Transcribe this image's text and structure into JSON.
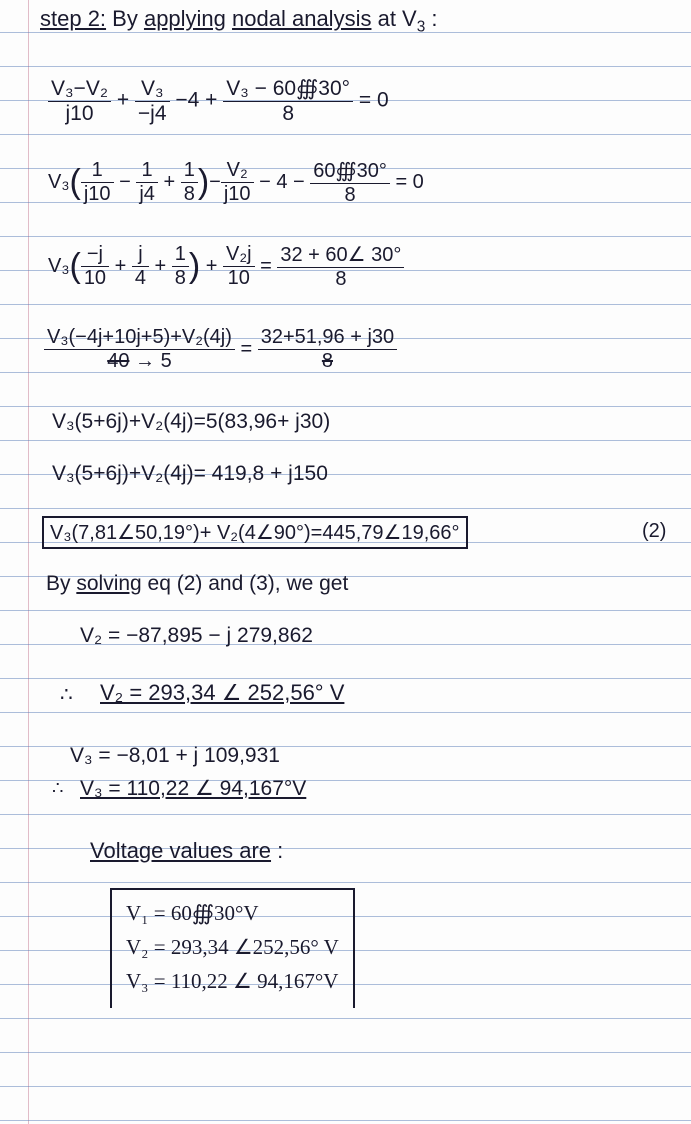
{
  "ink_color": "#1a1a2e",
  "rule_color": "#5b7db8",
  "margin_color": "#d4a0b0",
  "line_spacing": 34,
  "lines": {
    "step_title": "step 2: By applying nodal analysis at V₃ :",
    "eq1_a": "V₃−V₂",
    "eq1_a_den": "j10",
    "eq1_b": "V₃",
    "eq1_b_den": "−j4",
    "eq1_mid": "−4 +",
    "eq1_c": "V₃ − 60∰30°",
    "eq1_c_den": "8",
    "eq1_end": "= 0",
    "eq2_pre": "V₃",
    "eq2_paren_num": "1",
    "eq2_p1_den": "j10",
    "eq2_p2_num": "1",
    "eq2_p2_den": "j4",
    "eq2_p3_num": "1",
    "eq2_p3_den": "8",
    "eq2_mid_num": "V₂",
    "eq2_mid_den": "j10",
    "eq2_tail_num": "60∰30°",
    "eq2_tail_den": "8",
    "eq2_mid_txt": "− 4 −",
    "eq2_end": "= 0",
    "eq3_pre": "V₃",
    "eq3_a_num": "−j",
    "eq3_a_den": "10",
    "eq3_b_num": "j",
    "eq3_b_den": "4",
    "eq3_c_num": "1",
    "eq3_c_den": "8",
    "eq3_mid_num": "V₂j",
    "eq3_mid_den": "10",
    "eq3_rhs": "32 + 60∠ 30°",
    "eq3_rhs_den": "8",
    "eq4_num": "V₃(−4j+10j+5)+V₂(4j)",
    "eq4_den": "40 → 5",
    "eq4_rhs_num": "32+51,96 + j30",
    "eq4_rhs_den": "8",
    "eq5": "V₃(5+6j)+V₂(4j)=5(83,96+ j30)",
    "eq6": "V₃(5+6j)+V₂(4j)= 419,8 + j150",
    "eq7": "V₃(7,81∠50,19°)+ V₂(4∠90°)=445,79∠19,66°",
    "eq7_tag": "(2)",
    "solve_line": "By solving eq (2) and (3), we get",
    "v2_rect": "V₂ = −87,895 − j 279,862",
    "therefore1": "∴",
    "v2_polar": "V₂ = 293,34 ∠ 252,56° V",
    "v3_rect": "V₃ = −8,01 + j 109,931",
    "therefore2": "∴",
    "v3_polar": "V₃ = 110,22 ∠ 94,167°V",
    "values_title": "Voltage values are :",
    "box_v1": "V₁ = 60∰30°V",
    "box_v2": "V₂ = 293,34 ∠252,56° V",
    "box_v3": "V₃ = 110,22 ∠ 94,167°V"
  }
}
